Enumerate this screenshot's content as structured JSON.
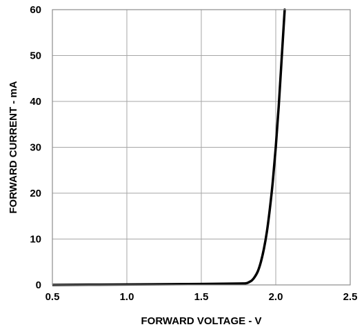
{
  "chart_data": {
    "type": "line",
    "title": "",
    "xlabel": "FORWARD VOLTAGE - V",
    "ylabel": "FORWARD CURRENT - mA",
    "xlim": [
      0.5,
      2.5
    ],
    "ylim": [
      0,
      60
    ],
    "xticks": [
      "0.5",
      "1.0",
      "1.5",
      "2.0",
      "2.5"
    ],
    "yticks": [
      "0",
      "10",
      "20",
      "30",
      "40",
      "50",
      "60"
    ],
    "grid": true,
    "legend": "none",
    "line_color": "#000000",
    "grid_color": "#a6a6a6",
    "series": [
      {
        "x": [
          0.5,
          1.0,
          1.5,
          1.75,
          1.8,
          1.82,
          1.84,
          1.86,
          1.88,
          1.9,
          1.92,
          1.94,
          1.96,
          1.98,
          2.0,
          2.02,
          2.04,
          2.06
        ],
        "y": [
          0.0,
          0.1,
          0.2,
          0.3,
          0.35,
          0.6,
          1.0,
          1.8,
          3.0,
          5.0,
          7.8,
          11.5,
          16.5,
          22.5,
          30.0,
          39.0,
          49.5,
          60.0
        ]
      }
    ]
  }
}
